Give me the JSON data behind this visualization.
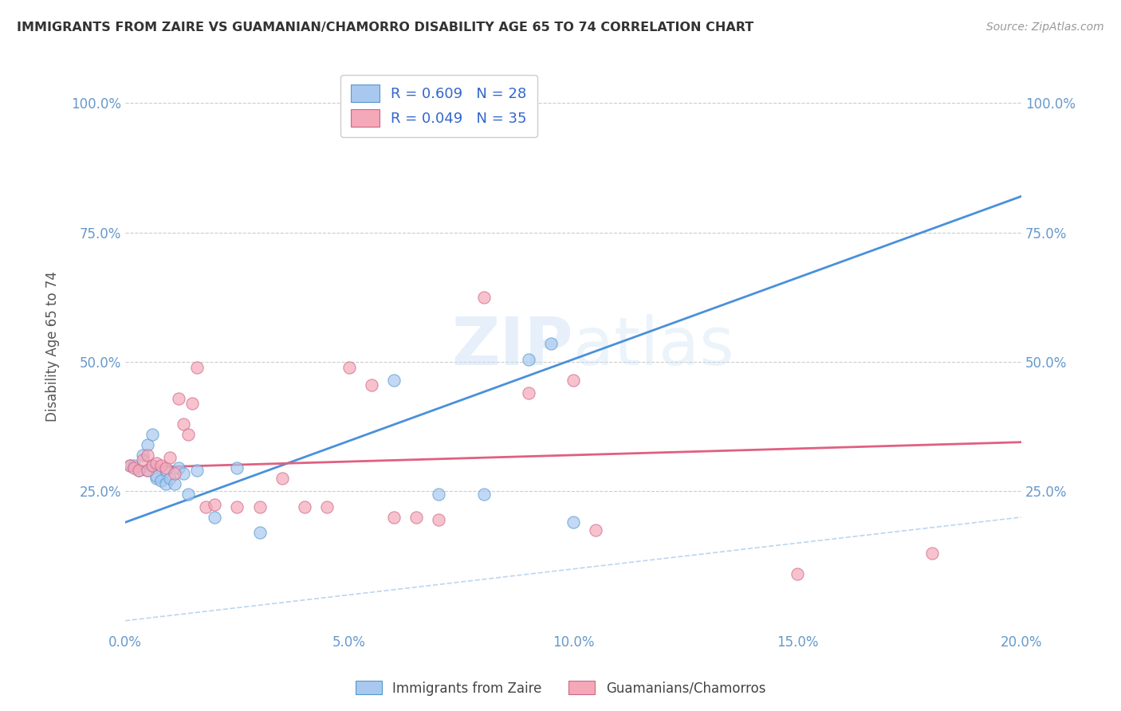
{
  "title": "IMMIGRANTS FROM ZAIRE VS GUAMANIAN/CHAMORRO DISABILITY AGE 65 TO 74 CORRELATION CHART",
  "source": "Source: ZipAtlas.com",
  "xlabel": "",
  "ylabel": "Disability Age 65 to 74",
  "legend_label_1": "Immigrants from Zaire",
  "legend_label_2": "Guamanians/Chamorros",
  "R1": 0.609,
  "N1": 28,
  "R2": 0.049,
  "N2": 35,
  "color1": "#a8c8f0",
  "color2": "#f4a8b8",
  "trendline1_color": "#4a90d9",
  "trendline2_color": "#e06080",
  "xlim": [
    0.0,
    0.2
  ],
  "ylim": [
    -0.02,
    1.08
  ],
  "xticks": [
    0.0,
    0.05,
    0.1,
    0.15,
    0.2
  ],
  "yticks": [
    0.25,
    0.5,
    0.75,
    1.0
  ],
  "xtick_labels": [
    "0.0%",
    "5.0%",
    "10.0%",
    "15.0%",
    "20.0%"
  ],
  "ytick_labels": [
    "25.0%",
    "50.0%",
    "75.0%",
    "100.0%"
  ],
  "scatter1_x": [
    0.001,
    0.002,
    0.003,
    0.004,
    0.005,
    0.005,
    0.006,
    0.006,
    0.007,
    0.007,
    0.008,
    0.009,
    0.009,
    0.01,
    0.011,
    0.012,
    0.013,
    0.014,
    0.016,
    0.02,
    0.025,
    0.03,
    0.06,
    0.07,
    0.08,
    0.09,
    0.095,
    0.1
  ],
  "scatter1_y": [
    0.3,
    0.3,
    0.29,
    0.32,
    0.34,
    0.29,
    0.36,
    0.3,
    0.275,
    0.28,
    0.27,
    0.265,
    0.29,
    0.275,
    0.265,
    0.295,
    0.285,
    0.245,
    0.29,
    0.2,
    0.295,
    0.17,
    0.465,
    0.245,
    0.245,
    0.505,
    0.535,
    0.19
  ],
  "scatter2_x": [
    0.001,
    0.002,
    0.003,
    0.004,
    0.005,
    0.005,
    0.006,
    0.007,
    0.008,
    0.009,
    0.01,
    0.011,
    0.012,
    0.013,
    0.014,
    0.015,
    0.016,
    0.018,
    0.02,
    0.025,
    0.03,
    0.035,
    0.04,
    0.045,
    0.05,
    0.055,
    0.06,
    0.065,
    0.07,
    0.08,
    0.09,
    0.1,
    0.105,
    0.15,
    0.18
  ],
  "scatter2_y": [
    0.3,
    0.295,
    0.29,
    0.31,
    0.32,
    0.29,
    0.3,
    0.305,
    0.3,
    0.295,
    0.315,
    0.285,
    0.43,
    0.38,
    0.36,
    0.42,
    0.49,
    0.22,
    0.225,
    0.22,
    0.22,
    0.275,
    0.22,
    0.22,
    0.49,
    0.455,
    0.2,
    0.2,
    0.195,
    0.625,
    0.44,
    0.465,
    0.175,
    0.09,
    0.13
  ],
  "trendline1_x": [
    0.0,
    0.2
  ],
  "trendline1_y": [
    0.19,
    0.82
  ],
  "trendline2_x": [
    0.0,
    0.2
  ],
  "trendline2_y": [
    0.295,
    0.345
  ],
  "refline_x": [
    0.0,
    1.0
  ],
  "refline_y": [
    0.0,
    1.0
  ],
  "watermark_zip": "ZIP",
  "watermark_atlas": "atlas",
  "background_color": "#ffffff",
  "grid_color": "#cccccc",
  "title_color": "#333333",
  "axis_label_color": "#555555",
  "tick_color": "#6699cc",
  "source_color": "#999999"
}
